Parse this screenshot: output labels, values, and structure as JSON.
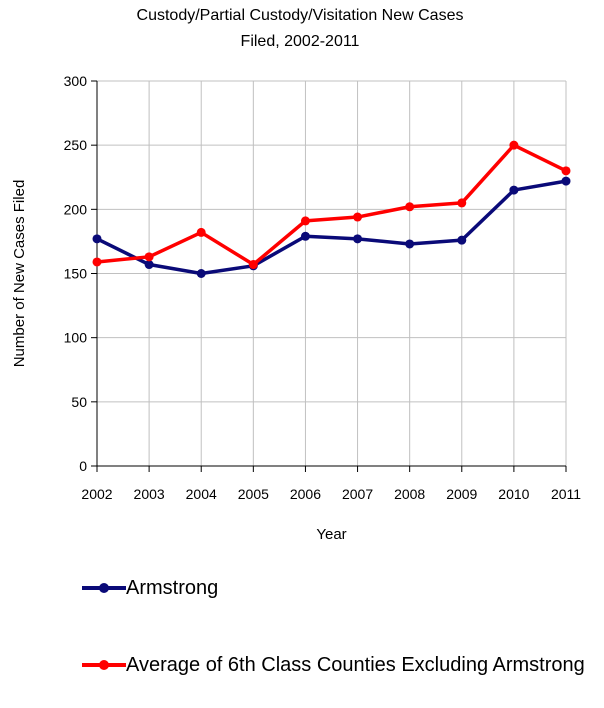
{
  "chart_data": {
    "type": "line",
    "title_line1": "Custody/Partial Custody/Visitation New  Cases",
    "title_line2": "Filed, 2002-2011",
    "xlabel": "Year",
    "ylabel": "Number of New Cases Filed",
    "ylim": [
      0,
      300
    ],
    "yticks": [
      "0",
      "50",
      "100",
      "150",
      "200",
      "250",
      "300"
    ],
    "categories": [
      "2002",
      "2003",
      "2004",
      "2005",
      "2006",
      "2007",
      "2008",
      "2009",
      "2010",
      "2011"
    ],
    "grid": true,
    "legend_position": "bottom",
    "series": [
      {
        "name": "Armstrong",
        "color": "#0a0a78",
        "values": [
          177,
          157,
          150,
          156,
          179,
          177,
          173,
          176,
          215,
          222
        ]
      },
      {
        "name": "Average of 6th Class Counties Excluding Armstrong",
        "color": "#ff0000",
        "values": [
          159,
          163,
          182,
          157,
          191,
          194,
          202,
          205,
          250,
          230
        ]
      }
    ]
  }
}
